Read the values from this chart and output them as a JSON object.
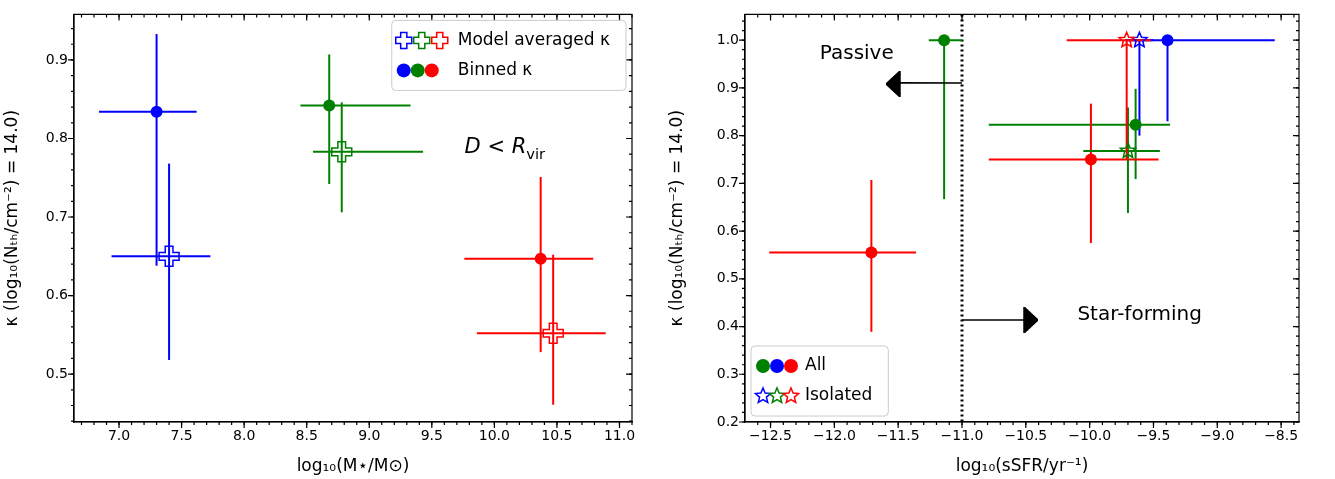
{
  "chart_data": [
    {
      "type": "scatter",
      "xlabel": "log₁₀(M⋆/M⊙)",
      "ylabel": "κ (log₁₀(Nₜₕ/cm⁻²) = 14.0)",
      "xlim": [
        6.64,
        11.1
      ],
      "ylim": [
        0.439,
        0.958
      ],
      "xticks": [
        {
          "value": 7,
          "label": "7.0"
        },
        7.5,
        {
          "value": 8,
          "label": "8.0"
        },
        8.5,
        {
          "value": 9,
          "label": "9.0"
        },
        9.5,
        {
          "value": 10,
          "label": "10.0"
        },
        10.5,
        {
          "value": 11,
          "label": "11.0"
        }
      ],
      "yticks": [
        0.5,
        0.6,
        0.7,
        0.8,
        0.9
      ],
      "grid": false,
      "legend": "top right",
      "annotations": [
        "D < R$_{vir}$"
      ],
      "series": [
        {
          "name": "Model averaged κ",
          "marker": "cross",
          "x": [
            7.4,
            8.78,
            10.47
          ],
          "values": [
            0.65,
            0.783,
            0.552
          ],
          "colors": [
            "#0000ff",
            "#008000",
            "#ff0000"
          ],
          "errors": [
            [
              0.518,
              0.768
            ],
            [
              0.706,
              0.846
            ],
            [
              0.461,
              0.652
            ]
          ],
          "xerrors": [
            [
              6.94,
              7.73
            ],
            [
              8.55,
              9.43
            ],
            [
              9.86,
              10.89
            ]
          ]
        },
        {
          "name": "Binned κ",
          "marker": "circle",
          "x": [
            7.3,
            8.68,
            10.37
          ],
          "values": [
            0.834,
            0.842,
            0.647
          ],
          "colors": [
            "#0000ff",
            "#008000",
            "#ff0000"
          ],
          "errors": [
            [
              0.638,
              0.933
            ],
            [
              0.742,
              0.907
            ],
            [
              0.528,
              0.751
            ]
          ],
          "xerrors": [
            [
              6.84,
              7.62
            ],
            [
              8.45,
              9.33
            ],
            [
              9.76,
              10.79
            ]
          ]
        }
      ]
    },
    {
      "type": "scatter",
      "xlabel": "log₁₀(sSFR/yr⁻¹)",
      "ylabel": "κ (log₁₀(Nₜₕ/cm⁻²) = 14.0)",
      "xlim": [
        -12.7,
        -8.36
      ],
      "ylim": [
        0.2,
        1.054
      ],
      "xticks": [
        {
          "value": -12.5,
          "label": "−12.5"
        },
        {
          "value": -12,
          "label": "−12.0"
        },
        {
          "value": -11.5,
          "label": "−11.5"
        },
        {
          "value": -11,
          "label": "−11.0"
        },
        {
          "value": -10.5,
          "label": "−10.5"
        },
        {
          "value": -10,
          "label": "−10.0"
        },
        {
          "value": -9.5,
          "label": "−9.5"
        },
        {
          "value": -9,
          "label": "−9.0"
        },
        {
          "value": -8.5,
          "label": "−8.5"
        }
      ],
      "yticks": [
        {
          "value": 0.2,
          "label": "0.2"
        },
        0.3,
        0.4,
        0.5,
        0.6,
        0.7,
        0.8,
        0.9,
        {
          "value": 1,
          "label": "1.0"
        }
      ],
      "grid": false,
      "legend": "bottom left",
      "annotations": [
        "Passive",
        "Star-forming"
      ],
      "ref_lines": [
        {
          "axis": "x",
          "value": -11,
          "color": "#000000",
          "line_style": "dotted"
        }
      ],
      "series": [
        {
          "name": "All",
          "marker": "circle",
          "x": [
            -11.14,
            -9.64,
            -9.39,
            -11.71,
            -9.99
          ],
          "values": [
            1,
            0.823,
            1,
            0.555,
            0.75
          ],
          "colors": [
            "#008000",
            "#008000",
            "#0000ff",
            "#ff0000",
            "#ff0000"
          ],
          "errors": [
            [
              0.667,
              1
            ],
            [
              0.709,
              0.898
            ],
            [
              0.83,
              1
            ],
            [
              0.389,
              0.707
            ],
            [
              0.575,
              0.867
            ]
          ],
          "xerrors": [
            [
              -11.26,
              -11
            ],
            [
              -10.79,
              -9.37
            ],
            [
              -9.72,
              -8.55
            ],
            [
              -12.51,
              -11.36
            ],
            [
              -10.79,
              -9.46
            ]
          ]
        },
        {
          "name": "Isolated",
          "marker": "star",
          "x": [
            -9.61,
            -9.7,
            -9.71
          ],
          "values": [
            1,
            0.768,
            1
          ],
          "colors": [
            "#0000ff",
            "#008000",
            "#ff0000"
          ],
          "errors": [
            [
              0.8,
              1
            ],
            [
              0.638,
              0.859
            ],
            [
              0.749,
              1
            ]
          ],
          "xerrors": [
            [
              -9.72,
              -9.5
            ],
            [
              -10.05,
              -9.45
            ],
            [
              -10.18,
              -9.52
            ]
          ]
        }
      ]
    }
  ]
}
